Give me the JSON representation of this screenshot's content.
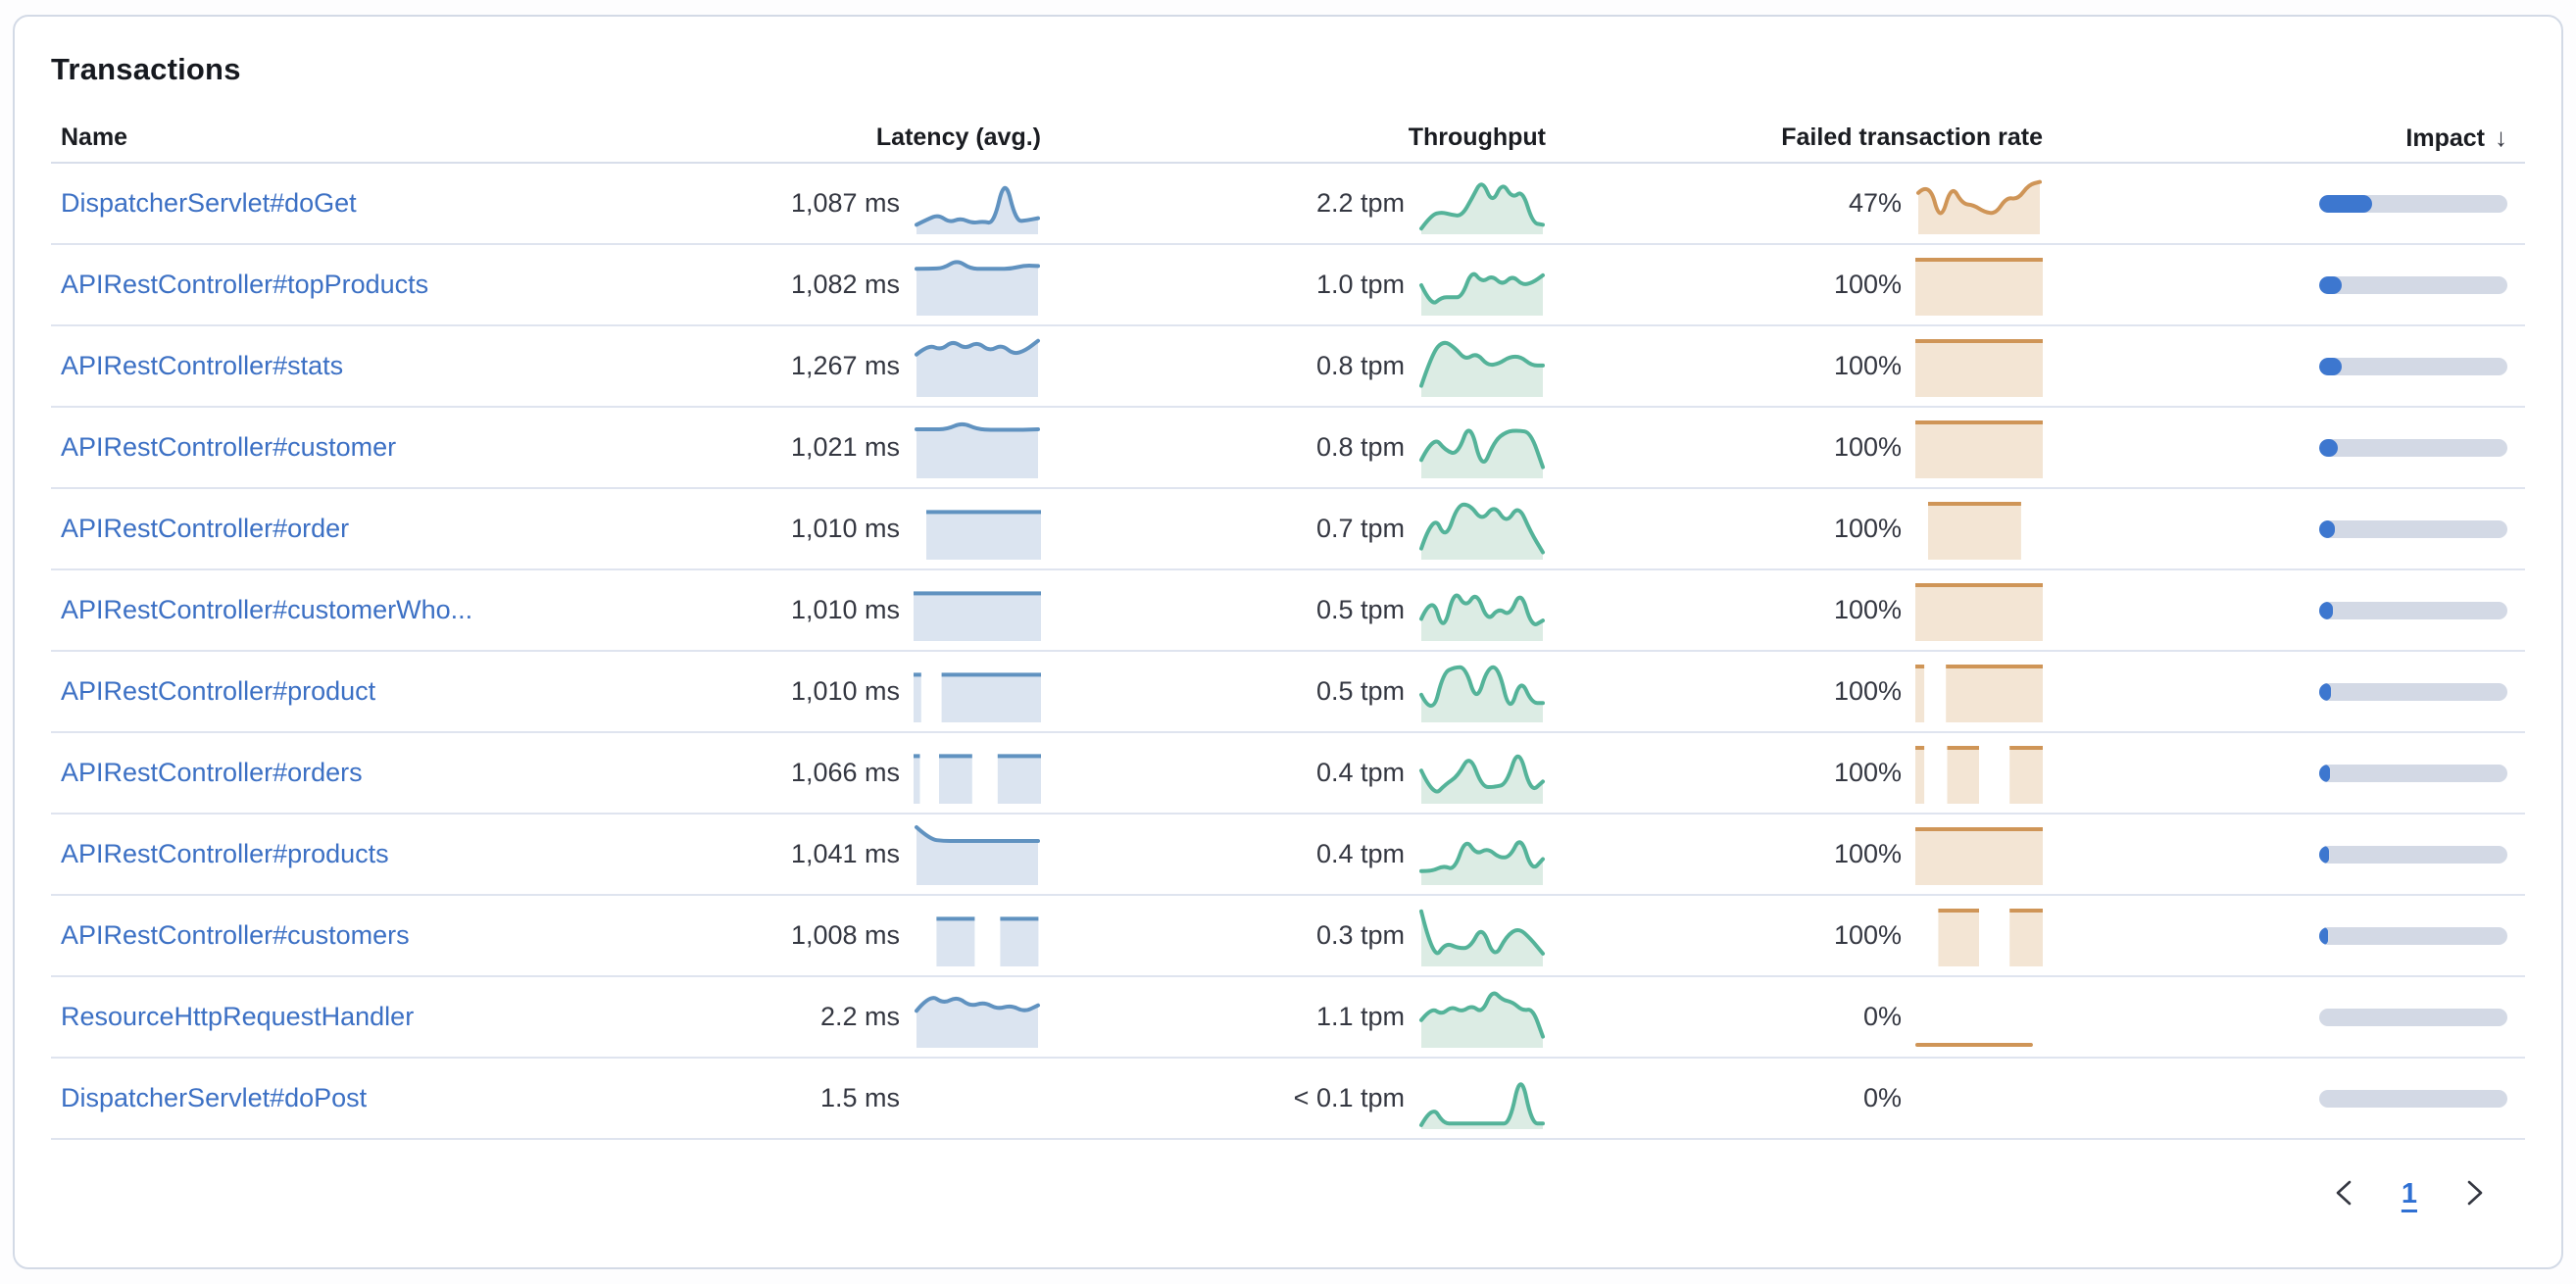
{
  "panel": {
    "title": "Transactions"
  },
  "colors": {
    "link": "#3c70c4",
    "latency_line": "#6092c0",
    "latency_fill": "#dbe4f0",
    "throughput_line": "#54b399",
    "throughput_fill": "#dcece4",
    "failed_line": "#cf9557",
    "failed_fill": "#f3e5d4",
    "impact_fill": "#3d77cf",
    "impact_track": "#d3d9e5"
  },
  "table": {
    "columns": {
      "name": "Name",
      "latency": "Latency (avg.)",
      "throughput": "Throughput",
      "failed_rate": "Failed transaction rate",
      "impact": "Impact",
      "impact_sort_indicator": "↓"
    },
    "rows": [
      {
        "name": "DispatcherServlet#doGet",
        "latency": "1,087 ms",
        "throughput": "2.2 tpm",
        "failed_rate": "47%",
        "impact_pct": 28,
        "latency_spark": {
          "type": "line",
          "points": [
            0.12,
            0.22,
            0.3,
            0.16,
            0.24,
            0.15,
            0.18,
            0.14,
            1.0,
            0.18,
            0.2,
            0.24
          ]
        },
        "throughput_spark": {
          "type": "line",
          "points": [
            0.05,
            0.3,
            0.35,
            0.3,
            0.28,
            0.6,
            0.95,
            0.5,
            0.9,
            0.6,
            0.75,
            0.15,
            0.12
          ]
        },
        "failed_spark": {
          "type": "line",
          "points": [
            0.7,
            0.9,
            0.15,
            0.85,
            0.5,
            0.48,
            0.35,
            0.32,
            0.62,
            0.58,
            0.85,
            0.9
          ]
        }
      },
      {
        "name": "APIRestController#topProducts",
        "latency": "1,082 ms",
        "throughput": "1.0 tpm",
        "failed_rate": "100%",
        "impact_pct": 12,
        "latency_spark": {
          "type": "line",
          "points": [
            0.8,
            0.8,
            0.81,
            0.96,
            0.8,
            0.8,
            0.8,
            0.8,
            0.86,
            0.85
          ]
        },
        "throughput_spark": {
          "type": "line",
          "points": [
            0.5,
            0.12,
            0.28,
            0.28,
            0.28,
            0.78,
            0.55,
            0.68,
            0.5,
            0.68,
            0.5,
            0.55,
            0.68
          ]
        },
        "failed_spark": {
          "type": "blocks",
          "segments": [
            [
              0,
              1,
              1
            ]
          ]
        }
      },
      {
        "name": "APIRestController#stats",
        "latency": "1,267 ms",
        "throughput": "0.8 tpm",
        "failed_rate": "100%",
        "impact_pct": 12,
        "latency_spark": {
          "type": "line",
          "points": [
            0.72,
            0.9,
            0.8,
            0.97,
            0.82,
            0.95,
            0.78,
            0.9,
            0.72,
            0.8,
            0.97
          ]
        },
        "throughput_spark": {
          "type": "line",
          "points": [
            0.15,
            0.75,
            0.97,
            0.85,
            0.62,
            0.75,
            0.52,
            0.55,
            0.68,
            0.68,
            0.52,
            0.52
          ]
        },
        "failed_spark": {
          "type": "blocks",
          "segments": [
            [
              0,
              1,
              1
            ]
          ]
        }
      },
      {
        "name": "APIRestController#customer",
        "latency": "1,021 ms",
        "throughput": "0.8 tpm",
        "failed_rate": "100%",
        "impact_pct": 10,
        "latency_spark": {
          "type": "line",
          "points": [
            0.84,
            0.84,
            0.84,
            0.96,
            0.84,
            0.83,
            0.83,
            0.83,
            0.84
          ]
        },
        "throughput_spark": {
          "type": "line",
          "points": [
            0.28,
            0.72,
            0.45,
            0.38,
            1.0,
            0.08,
            0.62,
            0.8,
            0.82,
            0.78,
            0.15
          ]
        },
        "failed_spark": {
          "type": "blocks",
          "segments": [
            [
              0,
              1,
              1
            ]
          ]
        }
      },
      {
        "name": "APIRestController#order",
        "latency": "1,010 ms",
        "throughput": "0.7 tpm",
        "failed_rate": "100%",
        "impact_pct": 8.3,
        "latency_spark": {
          "type": "blocks",
          "segments": [
            [
              0.1,
              1,
              0.85
            ]
          ]
        },
        "throughput_spark": {
          "type": "line",
          "points": [
            0.15,
            0.8,
            0.3,
            0.95,
            0.95,
            0.65,
            0.95,
            0.6,
            0.95,
            0.45,
            0.08
          ]
        },
        "failed_spark": {
          "type": "blocks",
          "segments": [
            [
              0.1,
              0.83,
              1
            ]
          ]
        }
      },
      {
        "name": "APIRestController#customerWho...",
        "latency": "1,010 ms",
        "throughput": "0.5 tpm",
        "failed_rate": "100%",
        "impact_pct": 7.3,
        "latency_spark": {
          "type": "blocks",
          "segments": [
            [
              0,
              1,
              0.85
            ]
          ]
        },
        "throughput_spark": {
          "type": "line",
          "points": [
            0.35,
            0.8,
            0.08,
            0.9,
            0.55,
            0.85,
            0.3,
            0.55,
            0.4,
            0.88,
            0.2,
            0.32
          ]
        },
        "failed_spark": {
          "type": "blocks",
          "segments": [
            [
              0,
              1,
              1
            ]
          ]
        }
      },
      {
        "name": "APIRestController#product",
        "latency": "1,010 ms",
        "throughput": "0.5 tpm",
        "failed_rate": "100%",
        "impact_pct": 6.4,
        "latency_spark": {
          "type": "blocks",
          "segments": [
            [
              0,
              0.06,
              0.85
            ],
            [
              0.22,
              1,
              0.85
            ]
          ]
        },
        "throughput_spark": {
          "type": "line",
          "points": [
            0.45,
            0.05,
            0.85,
            0.95,
            0.95,
            0.3,
            0.95,
            0.95,
            0.1,
            0.75,
            0.3,
            0.3
          ]
        },
        "failed_spark": {
          "type": "blocks",
          "segments": [
            [
              0,
              0.07,
              1
            ],
            [
              0.24,
              1,
              1
            ]
          ]
        }
      },
      {
        "name": "APIRestController#orders",
        "latency": "1,066 ms",
        "throughput": "0.4 tpm",
        "failed_rate": "100%",
        "impact_pct": 5.7,
        "latency_spark": {
          "type": "blocks",
          "segments": [
            [
              0,
              0.05,
              0.85
            ],
            [
              0.2,
              0.46,
              0.85
            ],
            [
              0.66,
              1,
              0.85
            ]
          ]
        },
        "throughput_spark": {
          "type": "line",
          "points": [
            0.55,
            0.08,
            0.3,
            0.45,
            0.85,
            0.25,
            0.25,
            0.3,
            1.0,
            0.15,
            0.35
          ]
        },
        "failed_spark": {
          "type": "blocks",
          "segments": [
            [
              0,
              0.07,
              1
            ],
            [
              0.25,
              0.5,
              1
            ],
            [
              0.74,
              1,
              1
            ]
          ]
        }
      },
      {
        "name": "APIRestController#products",
        "latency": "1,041 ms",
        "throughput": "0.4 tpm",
        "failed_rate": "100%",
        "impact_pct": 5.2,
        "latency_spark": {
          "type": "line",
          "points": [
            1.0,
            0.78,
            0.75,
            0.75,
            0.75,
            0.75,
            0.75,
            0.75,
            0.75,
            0.75
          ]
        },
        "throughput_spark": {
          "type": "line",
          "points": [
            0.2,
            0.2,
            0.3,
            0.22,
            0.8,
            0.5,
            0.62,
            0.45,
            0.45,
            0.85,
            0.2,
            0.42
          ]
        },
        "failed_spark": {
          "type": "blocks",
          "segments": [
            [
              0,
              1,
              1
            ]
          ]
        }
      },
      {
        "name": "APIRestController#customers",
        "latency": "1,008 ms",
        "throughput": "0.3 tpm",
        "failed_rate": "100%",
        "impact_pct": 4.7,
        "latency_spark": {
          "type": "blocks",
          "segments": [
            [
              0.18,
              0.48,
              0.85
            ],
            [
              0.68,
              0.98,
              0.85
            ]
          ]
        },
        "throughput_spark": {
          "type": "line",
          "points": [
            0.95,
            0.05,
            0.38,
            0.28,
            0.28,
            0.7,
            0.08,
            0.5,
            0.65,
            0.45,
            0.18
          ]
        },
        "failed_spark": {
          "type": "blocks",
          "segments": [
            [
              0.18,
              0.5,
              1
            ],
            [
              0.74,
              1,
              1
            ]
          ]
        }
      },
      {
        "name": "ResourceHttpRequestHandler",
        "latency": "2.2 ms",
        "throughput": "1.1 tpm",
        "failed_rate": "0%",
        "impact_pct": 0,
        "latency_spark": {
          "type": "line",
          "points": [
            0.62,
            0.92,
            0.75,
            0.88,
            0.7,
            0.78,
            0.65,
            0.72,
            0.6,
            0.72
          ]
        },
        "throughput_spark": {
          "type": "line",
          "points": [
            0.45,
            0.68,
            0.55,
            0.7,
            0.6,
            0.72,
            0.58,
            1.0,
            0.82,
            0.78,
            0.62,
            0.66,
            0.15
          ]
        },
        "failed_spark": {
          "type": "baseline",
          "width": 0.92
        }
      },
      {
        "name": "DispatcherServlet#doPost",
        "latency": "1.5 ms",
        "throughput": "< 0.1 tpm",
        "failed_rate": "0%",
        "impact_pct": 0,
        "latency_spark": null,
        "throughput_spark": {
          "type": "line",
          "points": [
            0.02,
            0.38,
            0.05,
            0.05,
            0.05,
            0.05,
            0.05,
            0.05,
            0.05,
            1.0,
            0.05,
            0.05
          ]
        },
        "failed_spark": null
      }
    ]
  },
  "pagination": {
    "prev_icon": "chevron-left",
    "next_icon": "chevron-right",
    "current_page": "1"
  }
}
